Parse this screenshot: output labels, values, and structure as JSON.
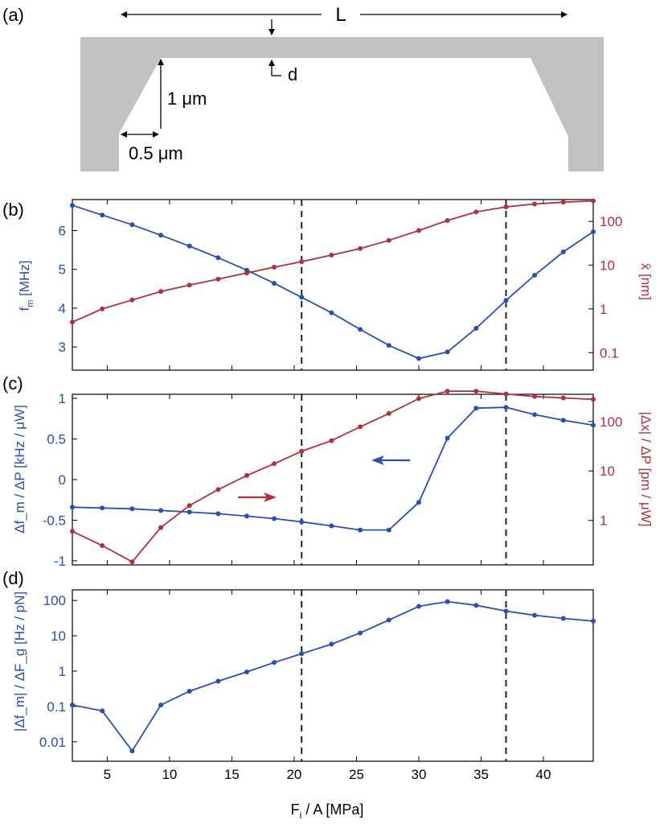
{
  "figure": {
    "panel_labels": [
      "(a)",
      "(b)",
      "(c)",
      "(d)"
    ],
    "colors": {
      "blue": "#2a4fb0",
      "red": "#b1313b",
      "beam": "#c2c0c1",
      "axis": "#000000",
      "guide": "#222222"
    },
    "shared_xlabel": {
      "main": "F",
      "sub": "i",
      "rest": " / A [MPa]"
    },
    "shared_xticks": [
      "5",
      "10",
      "15",
      "20",
      "25",
      "30",
      "35",
      "40"
    ],
    "vertical_lines_x": [
      20.6,
      37.0
    ]
  },
  "schematic": {
    "length_label": "L",
    "thickness_label": "d",
    "height_label": "1 μm",
    "offset_label": "0.5 μm"
  },
  "chart_data": [
    {
      "type": "line",
      "panel": "(b)",
      "xlim": [
        2.2,
        44
      ],
      "x": [
        2.2,
        4.6,
        7.0,
        9.3,
        11.6,
        13.9,
        16.2,
        18.4,
        20.6,
        23.0,
        25.3,
        27.6,
        30.0,
        32.3,
        34.6,
        37.0,
        39.3,
        41.6,
        44.0
      ],
      "left_axis": {
        "label_main": "f",
        "label_sub": "m",
        "label_rest": " [MHz]",
        "ylim": [
          2.4,
          6.8
        ],
        "ticks": [
          "3",
          "4",
          "5",
          "6"
        ],
        "scale": "linear"
      },
      "right_axis": {
        "label": "x̄ [nm]",
        "ylim_log10": [
          -1.4,
          2.5
        ],
        "ticks": [
          "0.1",
          "1",
          "10",
          "100"
        ],
        "scale": "log"
      },
      "series": [
        {
          "axis": "left",
          "color": "blue",
          "values": [
            6.65,
            6.4,
            6.15,
            5.88,
            5.6,
            5.3,
            4.98,
            4.64,
            4.28,
            3.88,
            3.45,
            3.04,
            2.7,
            2.87,
            3.48,
            4.2,
            4.85,
            5.45,
            5.97
          ]
        },
        {
          "axis": "right",
          "color": "red",
          "values": [
            0.5,
            1.0,
            1.6,
            2.5,
            3.5,
            4.8,
            6.6,
            9.0,
            12.0,
            17.0,
            24.0,
            37.0,
            62.0,
            105.0,
            165.0,
            215.0,
            250.0,
            275.0,
            295.0
          ]
        }
      ]
    },
    {
      "type": "line",
      "panel": "(c)",
      "xlim": [
        2.2,
        44
      ],
      "x": [
        2.2,
        4.6,
        7.0,
        9.3,
        11.6,
        13.9,
        16.2,
        18.4,
        20.6,
        23.0,
        25.3,
        27.6,
        30.0,
        32.3,
        34.6,
        37.0,
        39.3,
        41.6,
        44.0
      ],
      "left_axis": {
        "label": "Δf_m / ΔP [kHz / μW]",
        "ylim": [
          -1.05,
          1.05
        ],
        "ticks": [
          "-1",
          "-0.5",
          "0",
          "0.5",
          "1"
        ],
        "scale": "linear"
      },
      "right_axis": {
        "label": "|Δx| / ΔP [pm / μW]",
        "ylim_log10": [
          -0.9,
          2.55
        ],
        "ticks": [
          "1",
          "10",
          "100"
        ],
        "scale": "log"
      },
      "series": [
        {
          "axis": "left",
          "color": "blue",
          "values": [
            -0.34,
            -0.35,
            -0.36,
            -0.38,
            -0.4,
            -0.42,
            -0.45,
            -0.48,
            -0.52,
            -0.57,
            -0.62,
            -0.62,
            -0.28,
            0.51,
            0.88,
            0.89,
            0.8,
            0.73,
            0.67
          ]
        },
        {
          "axis": "right",
          "color": "red",
          "values": [
            0.6,
            0.31,
            0.145,
            0.72,
            2.0,
            4.2,
            8.1,
            14.0,
            25.0,
            41.0,
            78.0,
            145.0,
            290.0,
            410.0,
            410.0,
            360.0,
            320.0,
            300.0,
            280.0
          ]
        }
      ],
      "annotations": [
        {
          "type": "arrow",
          "direction": "left",
          "color": "blue"
        },
        {
          "type": "arrow",
          "direction": "right",
          "color": "red"
        }
      ]
    },
    {
      "type": "line",
      "panel": "(d)",
      "xlim": [
        2.2,
        44
      ],
      "x": [
        2.2,
        4.6,
        7.0,
        9.3,
        11.6,
        13.9,
        16.2,
        18.4,
        20.6,
        23.0,
        25.3,
        27.6,
        30.0,
        32.3,
        34.6,
        37.0,
        39.3,
        41.6,
        44.0
      ],
      "left_axis": {
        "label": "|Δf_m| / ΔF_g [Hz / pN]",
        "ylim_log10": [
          -2.55,
          2.3
        ],
        "ticks": [
          "0.01",
          "0.1",
          "1",
          "10",
          "100"
        ],
        "scale": "log"
      },
      "series": [
        {
          "axis": "left",
          "color": "blue",
          "values": [
            0.11,
            0.075,
            0.0055,
            0.11,
            0.27,
            0.52,
            0.95,
            1.75,
            3.1,
            5.8,
            12.0,
            28.0,
            68.0,
            93.0,
            73.0,
            50.0,
            38.0,
            31.0,
            26.0
          ]
        }
      ]
    }
  ]
}
